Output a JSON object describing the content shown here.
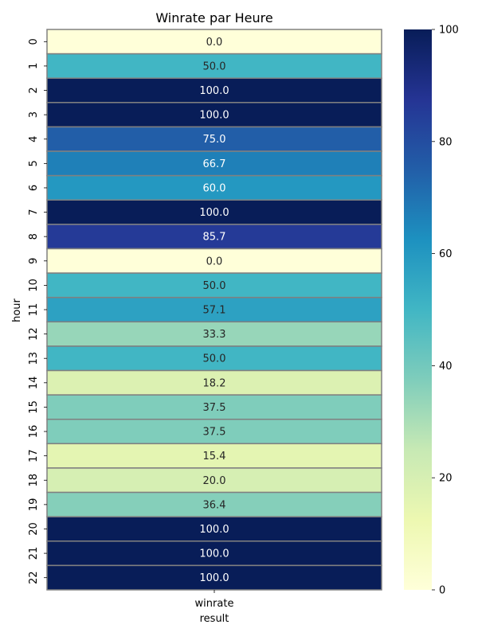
{
  "chart_data": {
    "type": "heatmap",
    "title": "Winrate par Heure",
    "xlabel": "result",
    "ylabel": "hour",
    "columns": [
      "winrate"
    ],
    "rows": [
      "0",
      "1",
      "2",
      "3",
      "4",
      "5",
      "6",
      "7",
      "8",
      "9",
      "10",
      "11",
      "12",
      "13",
      "14",
      "15",
      "16",
      "17",
      "18",
      "19",
      "20",
      "21",
      "22"
    ],
    "values": [
      0.0,
      50.0,
      100.0,
      100.0,
      75.0,
      66.7,
      60.0,
      100.0,
      85.7,
      0.0,
      50.0,
      57.1,
      33.3,
      50.0,
      18.2,
      37.5,
      37.5,
      15.4,
      20.0,
      36.4,
      100.0,
      100.0,
      100.0
    ],
    "value_labels": [
      "0.0",
      "50.0",
      "100.0",
      "100.0",
      "75.0",
      "66.7",
      "60.0",
      "100.0",
      "85.7",
      "0.0",
      "50.0",
      "57.1",
      "33.3",
      "50.0",
      "18.2",
      "37.5",
      "37.5",
      "15.4",
      "20.0",
      "36.4",
      "100.0",
      "100.0",
      "100.0"
    ],
    "colorbar": {
      "range": [
        0,
        100
      ],
      "ticks": [
        "0",
        "20",
        "40",
        "60",
        "80",
        "100"
      ],
      "colormap": "YlGnBu",
      "color_stops": [
        "#ffffd9",
        "#edf8b1",
        "#c7e9b4",
        "#7fcdbb",
        "#41b6c4",
        "#1d91c0",
        "#225ea8",
        "#253494",
        "#081d58"
      ]
    },
    "cell_border_color": "#808080"
  }
}
